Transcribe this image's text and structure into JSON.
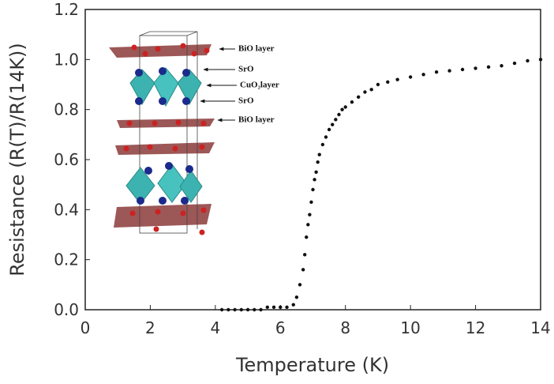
{
  "chart_data": {
    "type": "scatter",
    "xlabel": "Temperature (K)",
    "ylabel": "Resistance (R(T)/R(14K))",
    "x": [
      4.2,
      4.4,
      4.6,
      4.8,
      5.0,
      5.2,
      5.4,
      5.6,
      5.8,
      6.0,
      6.2,
      6.4,
      6.5,
      6.6,
      6.7,
      6.75,
      6.8,
      6.85,
      6.9,
      6.95,
      7.0,
      7.05,
      7.1,
      7.15,
      7.2,
      7.3,
      7.4,
      7.5,
      7.6,
      7.7,
      7.8,
      7.9,
      8.0,
      8.2,
      8.4,
      8.6,
      8.8,
      9.0,
      9.3,
      9.6,
      10.0,
      10.4,
      10.8,
      11.2,
      11.6,
      12.0,
      12.4,
      12.8,
      13.2,
      13.6,
      14.0
    ],
    "values": [
      0,
      0,
      0,
      0,
      0,
      0,
      0,
      0.01,
      0.01,
      0.01,
      0.01,
      0.02,
      0.05,
      0.1,
      0.16,
      0.22,
      0.29,
      0.34,
      0.38,
      0.43,
      0.48,
      0.52,
      0.55,
      0.59,
      0.62,
      0.66,
      0.69,
      0.72,
      0.74,
      0.76,
      0.78,
      0.8,
      0.81,
      0.83,
      0.85,
      0.87,
      0.88,
      0.9,
      0.91,
      0.92,
      0.93,
      0.94,
      0.95,
      0.955,
      0.96,
      0.965,
      0.97,
      0.975,
      0.985,
      0.995,
      1.0
    ],
    "color": "#111111",
    "xlim": [
      0,
      14
    ],
    "ylim": [
      0,
      1.2
    ],
    "xticks": [
      0,
      2,
      4,
      6,
      8,
      10,
      12,
      14
    ],
    "yticks": [
      {
        "value": 0,
        "label": "0.0"
      },
      0.2,
      0.4,
      0.6,
      0.8,
      {
        "value": 1,
        "label": "1.0"
      },
      1.2
    ],
    "grid": false,
    "annotations": [
      "BiO layer",
      "SrO",
      "CuO₂layer",
      "SrO",
      "BiO layer"
    ]
  }
}
